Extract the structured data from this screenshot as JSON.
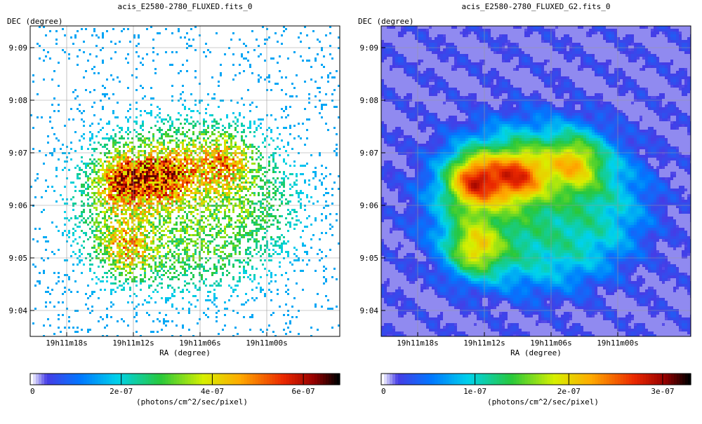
{
  "chart_data": [
    {
      "type": "heatmap",
      "title": "acis_E2580-2780_FLUXED.fits_0",
      "xlabel": "RA (degree)",
      "ylabel": "DEC (degree)",
      "x_ticks": [
        "19h11m18s",
        "19h11m12s",
        "19h11m06s",
        "19h11m00s"
      ],
      "y_ticks": [
        "9:09",
        "9:08",
        "9:07",
        "9:06",
        "9:05",
        "9:04"
      ],
      "grid": true,
      "colormap": "jet",
      "colorbar": {
        "label": "(photons/cm^2/sec/pixel)",
        "ticks": [
          "0",
          "2e-07",
          "4e-07",
          "6e-07"
        ],
        "tick_values": [
          0,
          2e-07,
          4e-07,
          6e-07
        ],
        "range": [
          0,
          6.8e-07
        ]
      },
      "rendering": "sparse",
      "emission": {
        "blobs": [
          {
            "ra": "19h11m13s",
            "dec": "9:06:30",
            "relative_intensity": 1.0
          },
          {
            "ra": "19h11m09s",
            "dec": "9:06:35",
            "relative_intensity": 0.85
          },
          {
            "ra": "19h11m13s",
            "dec": "9:05:10",
            "relative_intensity": 0.7
          },
          {
            "ra": "19h11m04s",
            "dec": "9:06:50",
            "relative_intensity": 0.65
          }
        ],
        "background_level": "low"
      }
    },
    {
      "type": "heatmap",
      "title": "acis_E2580-2780_FLUXED_G2.fits_0",
      "xlabel": "RA (degree)",
      "ylabel": "DEC (degree)",
      "x_ticks": [
        "19h11m18s",
        "19h11m12s",
        "19h11m06s",
        "19h11m00s"
      ],
      "y_ticks": [
        "9:09",
        "9:08",
        "9:07",
        "9:06",
        "9:05",
        "9:04"
      ],
      "grid": true,
      "colormap": "jet",
      "colorbar": {
        "label": "(photons/cm^2/sec/pixel)",
        "ticks": [
          "0",
          "1e-07",
          "2e-07",
          "3e-07"
        ],
        "tick_values": [
          0,
          1e-07,
          2e-07,
          3e-07
        ],
        "range": [
          0,
          3.3e-07
        ]
      },
      "rendering": "smoothed",
      "emission": {
        "blobs": [
          {
            "ra": "19h11m13s",
            "dec": "9:06:30",
            "relative_intensity": 1.0
          },
          {
            "ra": "19h11m09s",
            "dec": "9:06:35",
            "relative_intensity": 0.85
          },
          {
            "ra": "19h11m13s",
            "dec": "9:05:10",
            "relative_intensity": 0.7
          },
          {
            "ra": "19h11m04s",
            "dec": "9:06:50",
            "relative_intensity": 0.65
          }
        ],
        "background_level": "low"
      }
    }
  ]
}
